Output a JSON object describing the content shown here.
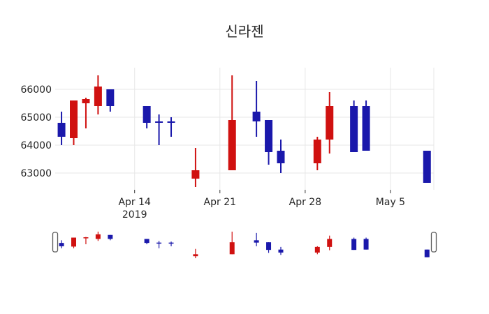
{
  "title": "신라젠",
  "colors": {
    "up": "#d01110",
    "down": "#1a18ab",
    "grid": "#e7e7e7",
    "text": "#262626",
    "tick_mark": "#333333",
    "handle_border": "#5a5a5a",
    "handle_fill": "#ffffff",
    "background": "#ffffff"
  },
  "y_axis": {
    "tick_labels": [
      "66000",
      "65000",
      "64000",
      "63000"
    ],
    "tick_values": [
      66000,
      65000,
      64000,
      63000
    ]
  },
  "x_axis": {
    "ticks": [
      {
        "label": "Apr 14",
        "sublabel": "2019",
        "date": "2019-04-14"
      },
      {
        "label": "Apr 21",
        "sublabel": "",
        "date": "2019-04-21"
      },
      {
        "label": "Apr 28",
        "sublabel": "",
        "date": "2019-04-28"
      },
      {
        "label": "May 5",
        "sublabel": "",
        "date": "2019-05-05"
      }
    ]
  },
  "rangeslider": {
    "visible": true,
    "handles": 2
  },
  "chart_data": {
    "type": "candlestick",
    "title": "신라젠",
    "x": [
      "2019-04-08",
      "2019-04-09",
      "2019-04-10",
      "2019-04-11",
      "2019-04-12",
      "2019-04-15",
      "2019-04-16",
      "2019-04-17",
      "2019-04-19",
      "2019-04-22",
      "2019-04-24",
      "2019-04-25",
      "2019-04-26",
      "2019-04-29",
      "2019-04-30",
      "2019-05-02",
      "2019-05-03",
      "2019-05-08"
    ],
    "open": [
      64800,
      64250,
      65500,
      65400,
      66000,
      65400,
      64850,
      64850,
      62800,
      63100,
      65200,
      64900,
      63800,
      63350,
      64200,
      65400,
      65400,
      63800
    ],
    "high": [
      65200,
      65600,
      65700,
      66500,
      66000,
      65400,
      65100,
      65000,
      63900,
      66500,
      66300,
      64900,
      64200,
      64300,
      65900,
      65600,
      65600,
      63800
    ],
    "low": [
      64000,
      64000,
      64600,
      65100,
      65200,
      64600,
      64000,
      64300,
      62500,
      63100,
      64300,
      63300,
      63000,
      63100,
      63700,
      63750,
      63800,
      62650
    ],
    "close": [
      64300,
      65600,
      65650,
      66100,
      65400,
      64800,
      64800,
      64800,
      63100,
      64900,
      64850,
      63750,
      63350,
      64200,
      65400,
      63750,
      63800,
      62650
    ],
    "increasing_color": "#d01110",
    "decreasing_color": "#1a18ab",
    "xlabel": "",
    "ylabel": "",
    "x_range": [
      "2019-04-07",
      "2019-05-09"
    ],
    "y_range": [
      62400,
      66775
    ],
    "grid": true,
    "legend": false,
    "rangeslider": true
  }
}
